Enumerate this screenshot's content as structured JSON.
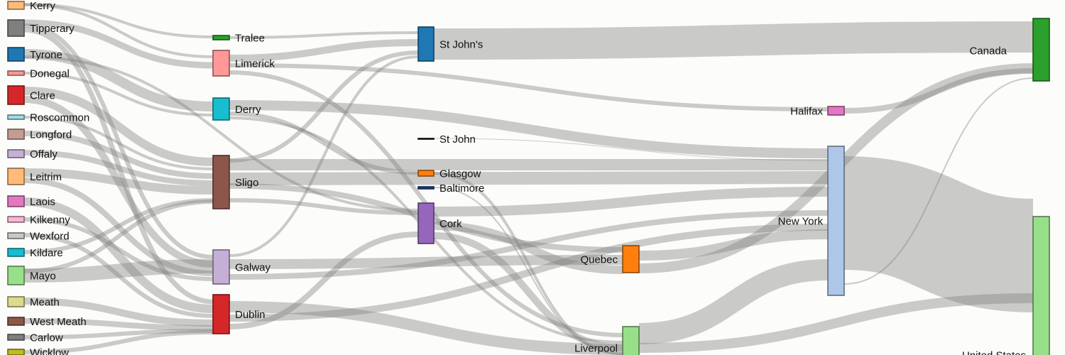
{
  "diagram": {
    "type": "sankey",
    "link_color": "#808080",
    "columns": [
      {
        "id": "counties",
        "nodes": [
          {
            "id": "kerry",
            "label": "Kerry",
            "color": "#ffbb78"
          },
          {
            "id": "tipperary",
            "label": "Tipperary",
            "color": "#7f7f7f"
          },
          {
            "id": "tyrone",
            "label": "Tyrone",
            "color": "#1f77b4"
          },
          {
            "id": "donegal",
            "label": "Donegal",
            "color": "#ff9896"
          },
          {
            "id": "clare",
            "label": "Clare",
            "color": "#d62728"
          },
          {
            "id": "roscommon",
            "label": "Roscommon",
            "color": "#9edae5"
          },
          {
            "id": "longford",
            "label": "Longford",
            "color": "#c49c94"
          },
          {
            "id": "offaly",
            "label": "Offaly",
            "color": "#c5b0d5"
          },
          {
            "id": "leitrim",
            "label": "Leitrim",
            "color": "#ffbb78"
          },
          {
            "id": "laois",
            "label": "Laois",
            "color": "#e377c2"
          },
          {
            "id": "kilkenny",
            "label": "Kilkenny",
            "color": "#f7b6d2"
          },
          {
            "id": "wexford",
            "label": "Wexford",
            "color": "#c7c7c7"
          },
          {
            "id": "kildare",
            "label": "Kildare",
            "color": "#17becf"
          },
          {
            "id": "mayo",
            "label": "Mayo",
            "color": "#98df8a"
          },
          {
            "id": "meath",
            "label": "Meath",
            "color": "#dbdb8d"
          },
          {
            "id": "westmeath",
            "label": "West Meath",
            "color": "#8c564b"
          },
          {
            "id": "carlow",
            "label": "Carlow",
            "color": "#7f7f7f"
          },
          {
            "id": "wicklow",
            "label": "Wicklow",
            "color": "#bcbd22"
          }
        ]
      },
      {
        "id": "towns",
        "nodes": [
          {
            "id": "tralee",
            "label": "Tralee",
            "color": "#2ca02c"
          },
          {
            "id": "limerick",
            "label": "Limerick",
            "color": "#ff9896"
          },
          {
            "id": "derry",
            "label": "Derry",
            "color": "#17becf"
          },
          {
            "id": "sligo",
            "label": "Sligo",
            "color": "#8c564b"
          },
          {
            "id": "galway",
            "label": "Galway",
            "color": "#c5b0d5"
          },
          {
            "id": "dublin",
            "label": "Dublin",
            "color": "#d62728"
          }
        ]
      },
      {
        "id": "ports",
        "nodes": [
          {
            "id": "stjohns",
            "label": "St John's",
            "color": "#1f77b4"
          },
          {
            "id": "stjohn",
            "label": "St John",
            "color": "#111111"
          },
          {
            "id": "glasgow",
            "label": "Glasgow",
            "color": "#ff7f0e"
          },
          {
            "id": "baltimore",
            "label": "Baltimore",
            "color": "#1f3f8f"
          },
          {
            "id": "cork",
            "label": "Cork",
            "color": "#9467bd"
          }
        ]
      },
      {
        "id": "transit",
        "nodes": [
          {
            "id": "quebec",
            "label": "Quebec",
            "color": "#ff7f0e"
          },
          {
            "id": "liverpool",
            "label": "Liverpool",
            "color": "#98df8a"
          }
        ]
      },
      {
        "id": "arrival",
        "nodes": [
          {
            "id": "halifax",
            "label": "Halifax",
            "color": "#e377c2"
          },
          {
            "id": "newyork",
            "label": "New York",
            "color": "#aec7e8"
          }
        ]
      },
      {
        "id": "country",
        "nodes": [
          {
            "id": "canada",
            "label": "Canada",
            "color": "#2ca02c"
          },
          {
            "id": "unitedstates",
            "label": "United States",
            "color": "#98df8a"
          }
        ]
      }
    ]
  }
}
